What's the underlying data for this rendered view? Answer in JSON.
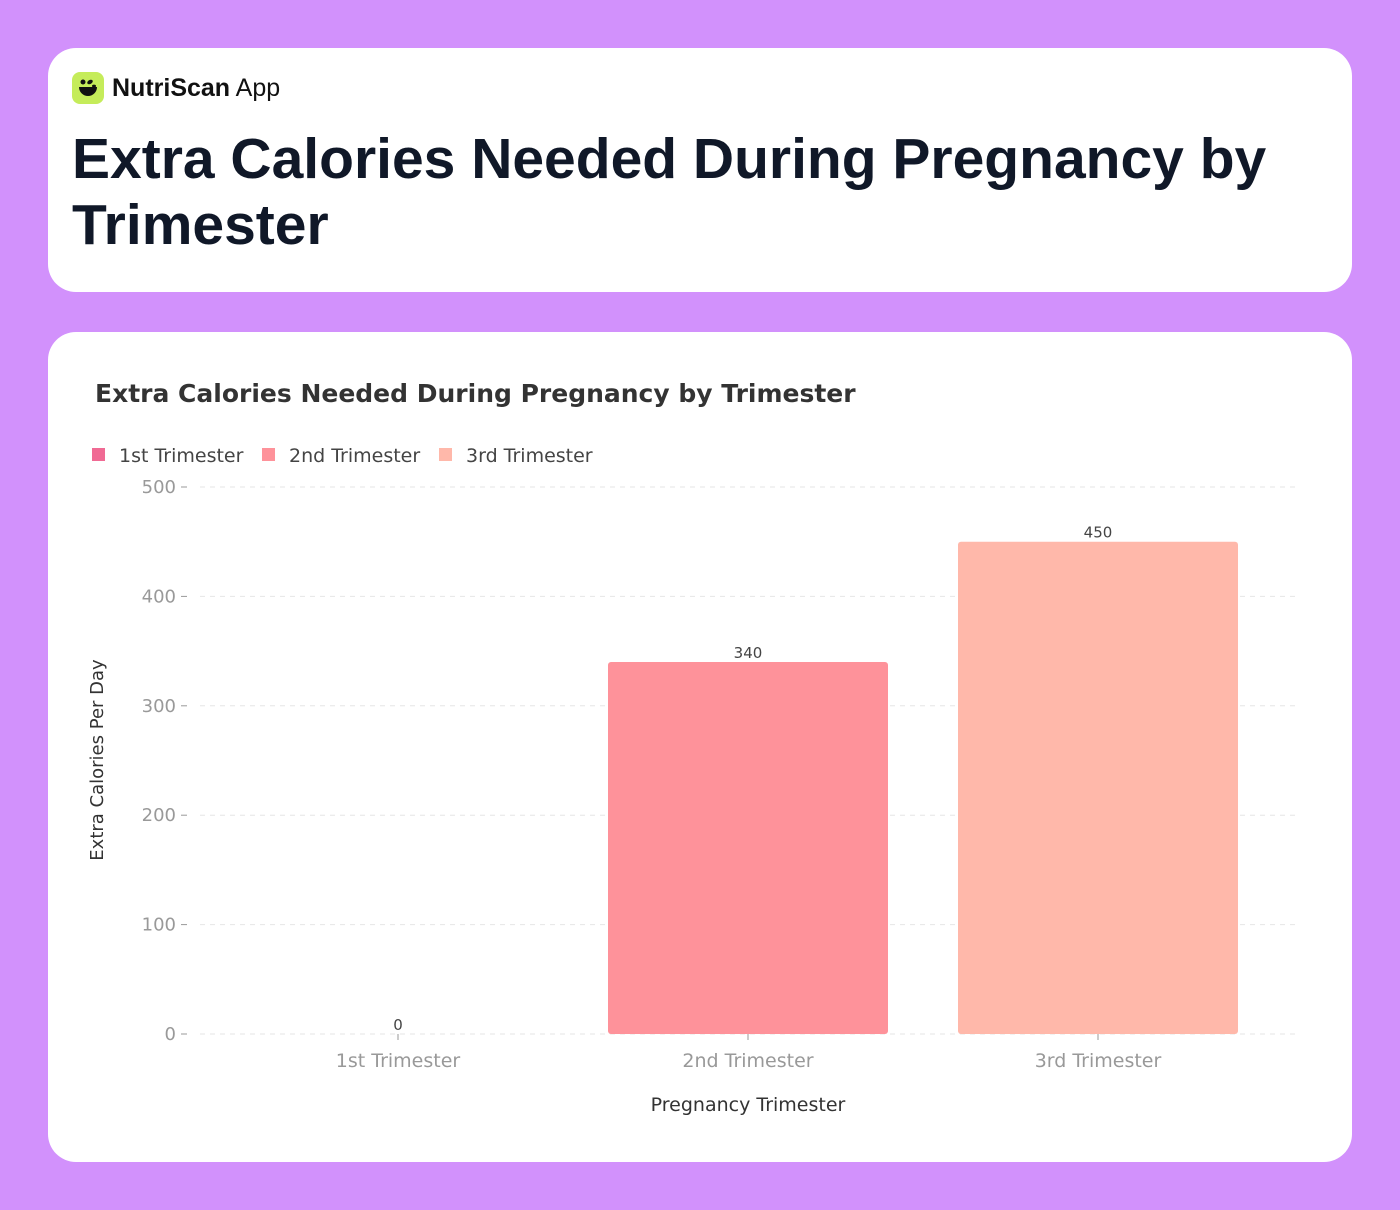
{
  "brand": {
    "name_bold": "NutriScan",
    "name_light": "App",
    "icon": "leaf-bowl-icon"
  },
  "header": {
    "title": "Extra Calories Needed During Pregnancy by Trimester"
  },
  "chart_data": {
    "type": "bar",
    "title": "Extra Calories Needed During Pregnancy by Trimester",
    "xlabel": "Pregnancy Trimester",
    "ylabel": "Extra Calories Per Day",
    "categories": [
      "1st Trimester",
      "2nd Trimester",
      "3rd Trimester"
    ],
    "values": [
      0,
      340,
      450
    ],
    "colors": [
      "#f06a94",
      "#fe929a",
      "#ffb8aa"
    ],
    "legend": [
      "1st Trimester",
      "2nd Trimester",
      "3rd Trimester"
    ],
    "legend_position": "top-left",
    "ylim": [
      0,
      500
    ],
    "yticks": [
      0,
      100,
      200,
      300,
      400,
      500
    ],
    "grid": true
  }
}
